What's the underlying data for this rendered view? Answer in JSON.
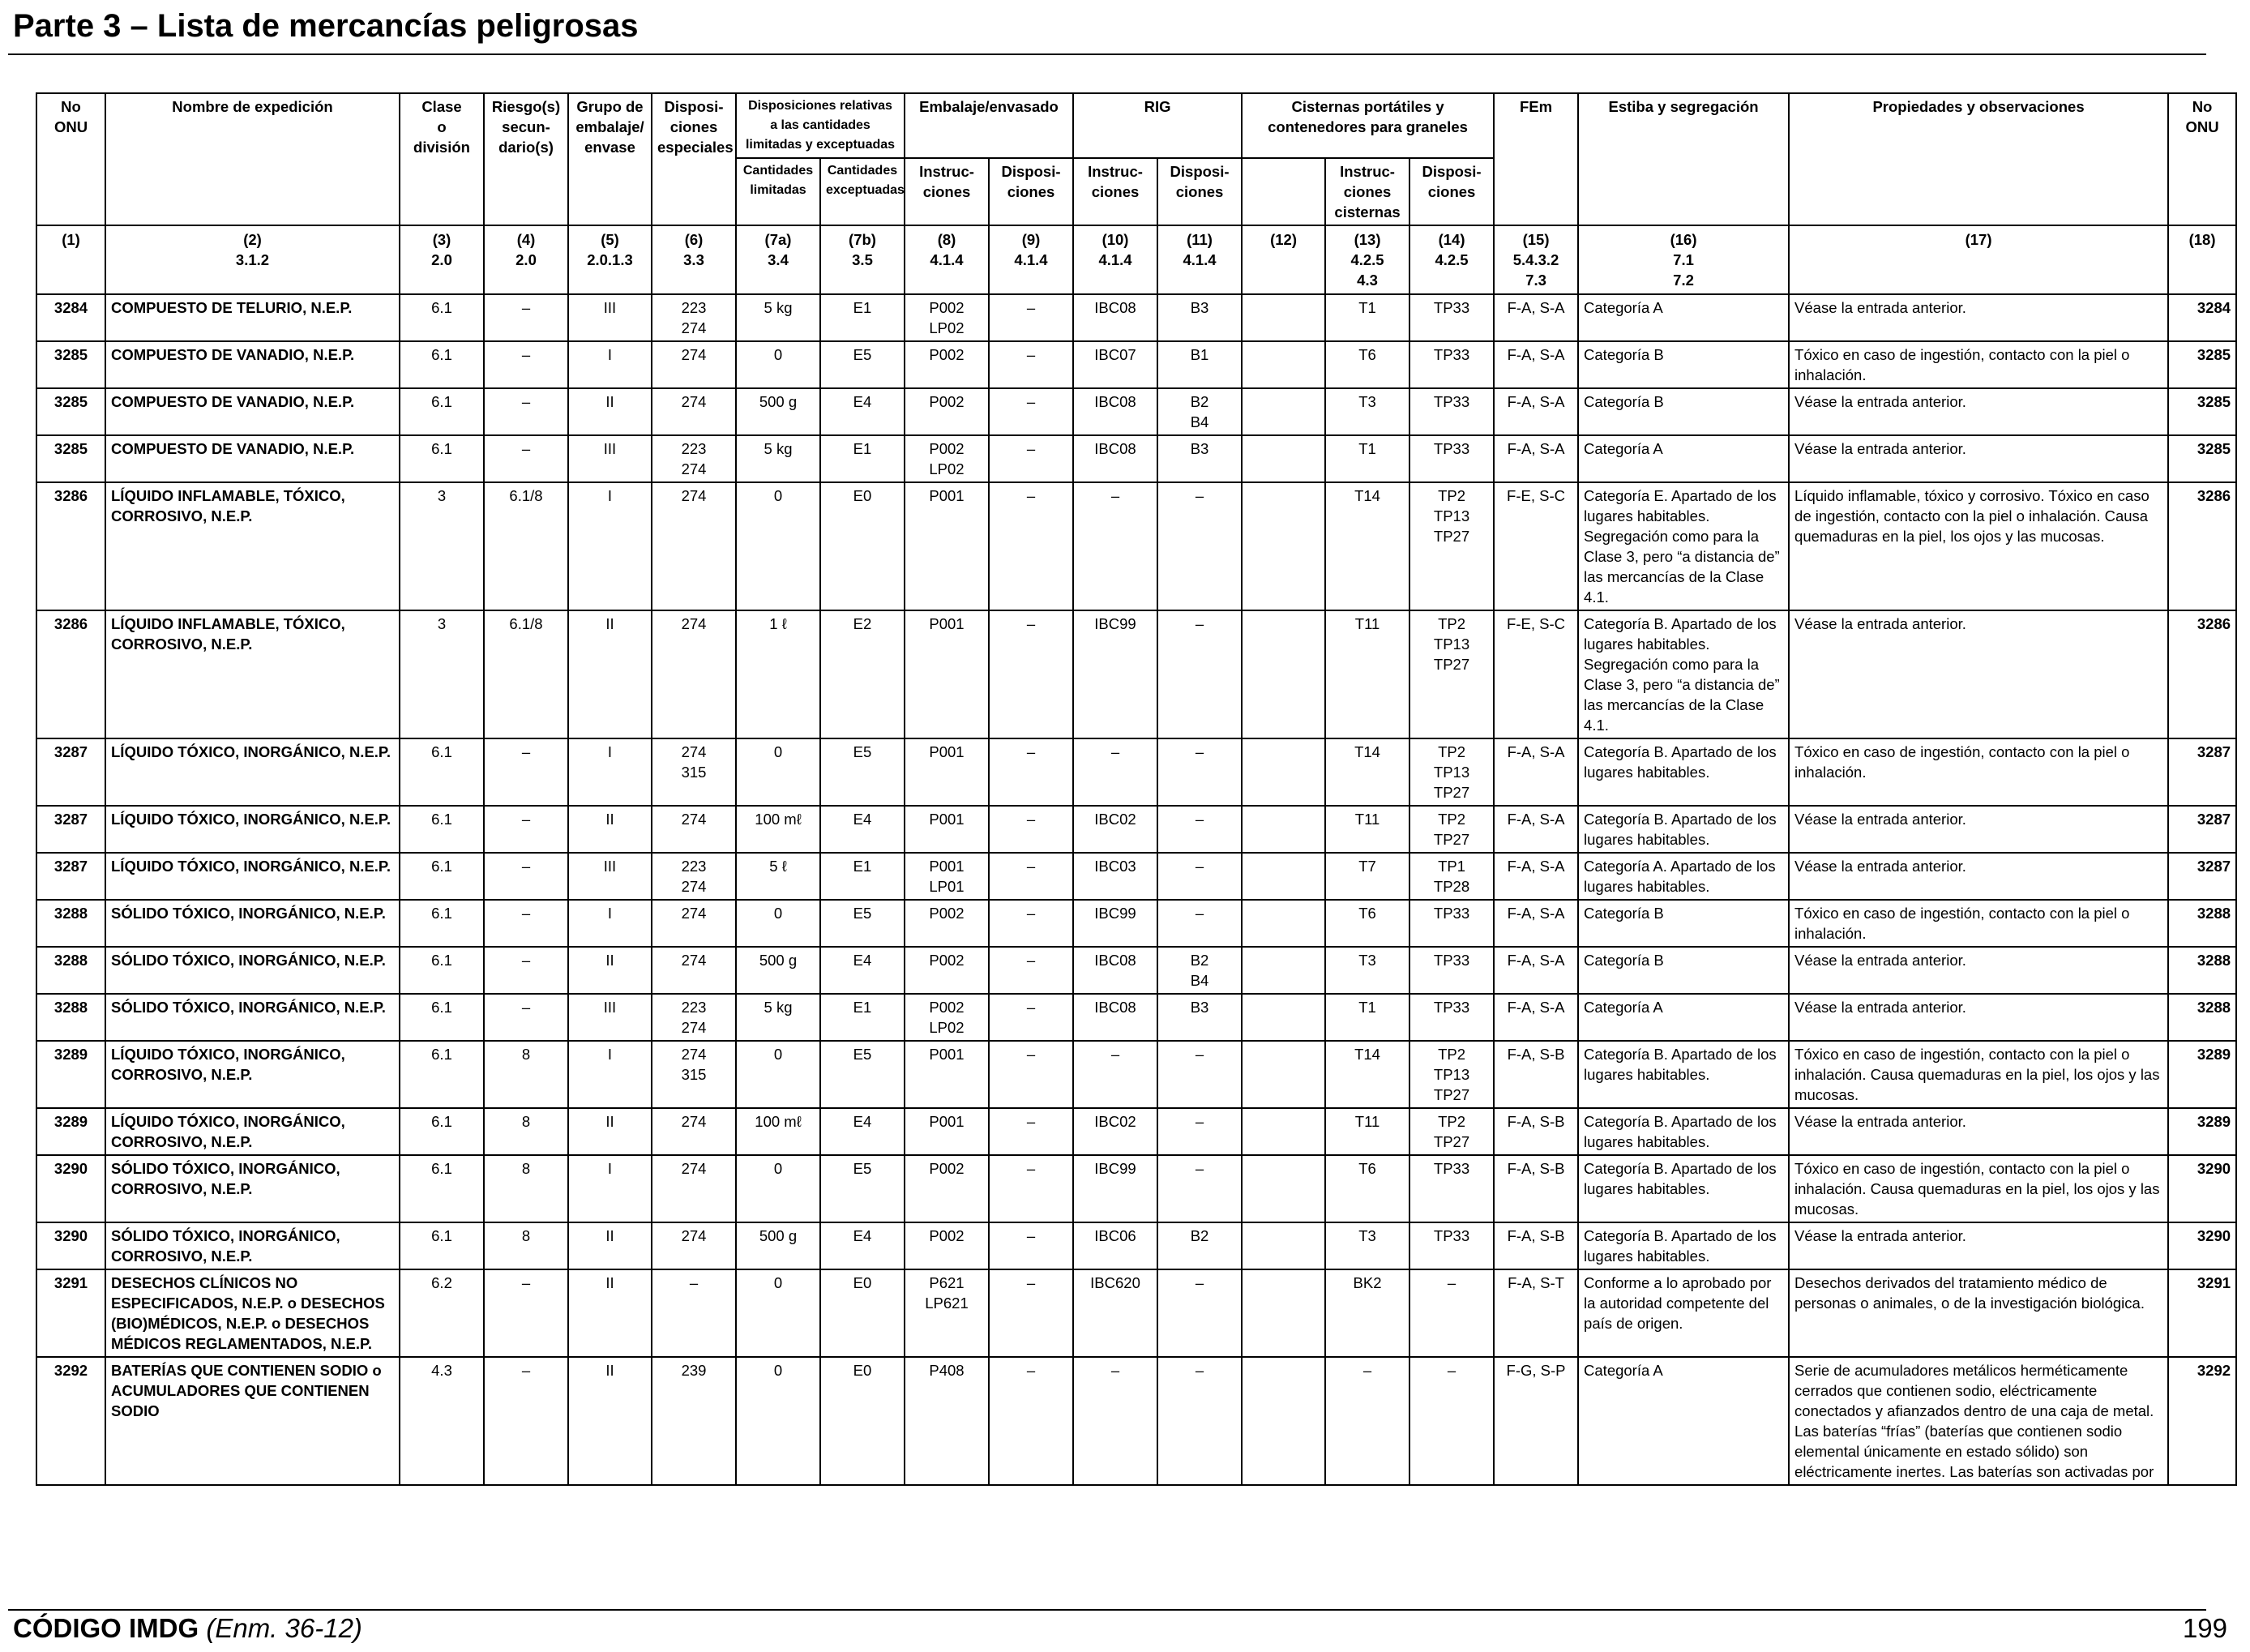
{
  "page": {
    "title": "Parte 3 – Lista de mercancías peligrosas",
    "footer_code": "CÓDIGO IMDG",
    "footer_edition": "(Enm. 36-12)",
    "page_number": "199"
  },
  "table": {
    "headers": {
      "un_no": "No\nONU",
      "name": "Nombre de expedición",
      "class": "Clase\no\ndivisión",
      "subrisk": "Riesgo(s)\nsecun-\ndario(s)",
      "pg": "Grupo de\nembalaje/\nenvase",
      "sp": "Disposi-\nciones\nespeciales",
      "limited_group": "Disposiciones relativas\na las cantidades\nlimitadas y exceptuadas",
      "limited": "Cantidades\nlimitadas",
      "excepted": "Cantidades\nexceptuadas",
      "packing_group": "Embalaje/envasado",
      "packing_instr": "Instruc-\nciones",
      "packing_prov": "Disposi-\nciones",
      "ibc_group": "RIG",
      "ibc_instr": "Instruc-\nciones",
      "ibc_prov": "Disposi-\nciones",
      "tank_group": "Cisternas portátiles y\ncontenedores para graneles",
      "tank_instr": "Instruc-\nciones\ncisternas",
      "tank_prov": "Disposi-\nciones",
      "ems": "FEm",
      "stowage": "Estiba y segregación",
      "properties": "Propiedades y observaciones",
      "un_no_right": "No\nONU"
    },
    "column_numbers": [
      "(1)",
      "(2)\n3.1.2",
      "(3)\n2.0",
      "(4)\n2.0",
      "(5)\n2.0.1.3",
      "(6)\n3.3",
      "(7a)\n3.4",
      "(7b)\n3.5",
      "(8)\n4.1.4",
      "(9)\n4.1.4",
      "(10)\n4.1.4",
      "(11)\n4.1.4",
      "(12)",
      "(13)\n4.2.5\n4.3",
      "(14)\n4.2.5",
      "(15)\n5.4.3.2\n7.3",
      "(16)\n7.1\n7.2",
      "(17)",
      "(18)"
    ],
    "rows": [
      {
        "un": "3284",
        "name": "COMPUESTO DE TELURIO, N.E.P.",
        "cls": "6.1",
        "sub": "–",
        "pg": "III",
        "sp": "223\n274",
        "lq": "5 kg",
        "eq": "E1",
        "pi": "P002\nLP02",
        "pp": "–",
        "ibc": "IBC08",
        "ibcp": "B3",
        "c12": "",
        "tank": "T1",
        "tankp": "TP33",
        "ems": "F-A, S-A",
        "stow": "Categoría A",
        "props": "Véase la entrada anterior.",
        "un2": "3284"
      },
      {
        "un": "3285",
        "name": "COMPUESTO DE VANADIO, N.E.P.",
        "cls": "6.1",
        "sub": "–",
        "pg": "I",
        "sp": "274",
        "lq": "0",
        "eq": "E5",
        "pi": "P002",
        "pp": "–",
        "ibc": "IBC07",
        "ibcp": "B1",
        "c12": "",
        "tank": "T6",
        "tankp": "TP33",
        "ems": "F-A, S-A",
        "stow": "Categoría B",
        "props": "Tóxico en caso de ingestión, contacto con la piel o inhalación.",
        "un2": "3285"
      },
      {
        "un": "3285",
        "name": "COMPUESTO DE VANADIO, N.E.P.",
        "cls": "6.1",
        "sub": "–",
        "pg": "II",
        "sp": "274",
        "lq": "500 g",
        "eq": "E4",
        "pi": "P002",
        "pp": "–",
        "ibc": "IBC08",
        "ibcp": "B2\nB4",
        "c12": "",
        "tank": "T3",
        "tankp": "TP33",
        "ems": "F-A, S-A",
        "stow": "Categoría B",
        "props": "Véase la entrada anterior.",
        "un2": "3285"
      },
      {
        "un": "3285",
        "name": "COMPUESTO DE VANADIO, N.E.P.",
        "cls": "6.1",
        "sub": "–",
        "pg": "III",
        "sp": "223\n274",
        "lq": "5 kg",
        "eq": "E1",
        "pi": "P002\nLP02",
        "pp": "–",
        "ibc": "IBC08",
        "ibcp": "B3",
        "c12": "",
        "tank": "T1",
        "tankp": "TP33",
        "ems": "F-A, S-A",
        "stow": "Categoría A",
        "props": "Véase la entrada anterior.",
        "un2": "3285"
      },
      {
        "un": "3286",
        "name": "LÍQUIDO INFLAMABLE, TÓXICO, CORROSIVO, N.E.P.",
        "cls": "3",
        "sub": "6.1/8",
        "pg": "I",
        "sp": "274",
        "lq": "0",
        "eq": "E0",
        "pi": "P001",
        "pp": "–",
        "ibc": "–",
        "ibcp": "–",
        "c12": "",
        "tank": "T14",
        "tankp": "TP2\nTP13\nTP27",
        "ems": "F-E, S-C",
        "stow": "Categoría E. Apartado de los lugares habitables. Segregación como para la Clase 3, pero “a distancia de” las mercancías de la Clase 4.1.",
        "props": "Líquido inflamable, tóxico y corrosivo. Tóxico en caso de ingestión, contacto con la piel o inhalación. Causa quemaduras en la piel, los ojos y las mucosas.",
        "un2": "3286"
      },
      {
        "un": "3286",
        "name": "LÍQUIDO INFLAMABLE, TÓXICO, CORROSIVO, N.E.P.",
        "cls": "3",
        "sub": "6.1/8",
        "pg": "II",
        "sp": "274",
        "lq": "1 ℓ",
        "eq": "E2",
        "pi": "P001",
        "pp": "–",
        "ibc": "IBC99",
        "ibcp": "–",
        "c12": "",
        "tank": "T11",
        "tankp": "TP2\nTP13\nTP27",
        "ems": "F-E, S-C",
        "stow": "Categoría B. Apartado de los lugares habitables. Segregación como para la Clase 3, pero “a distancia de” las mercancías de la Clase 4.1.",
        "props": "Véase la entrada anterior.",
        "un2": "3286"
      },
      {
        "un": "3287",
        "name": "LÍQUIDO TÓXICO, INORGÁNICO, N.E.P.",
        "cls": "6.1",
        "sub": "–",
        "pg": "I",
        "sp": "274\n315",
        "lq": "0",
        "eq": "E5",
        "pi": "P001",
        "pp": "–",
        "ibc": "–",
        "ibcp": "–",
        "c12": "",
        "tank": "T14",
        "tankp": "TP2\nTP13\nTP27",
        "ems": "F-A, S-A",
        "stow": "Categoría B. Apartado de los lugares habitables.",
        "props": "Tóxico en caso de ingestión, contacto con la piel o inhalación.",
        "un2": "3287"
      },
      {
        "un": "3287",
        "name": "LÍQUIDO TÓXICO, INORGÁNICO, N.E.P.",
        "cls": "6.1",
        "sub": "–",
        "pg": "II",
        "sp": "274",
        "lq": "100 mℓ",
        "eq": "E4",
        "pi": "P001",
        "pp": "–",
        "ibc": "IBC02",
        "ibcp": "–",
        "c12": "",
        "tank": "T11",
        "tankp": "TP2\nTP27",
        "ems": "F-A, S-A",
        "stow": "Categoría B. Apartado de los lugares habitables.",
        "props": "Véase la entrada anterior.",
        "un2": "3287"
      },
      {
        "un": "3287",
        "name": "LÍQUIDO TÓXICO, INORGÁNICO, N.E.P.",
        "cls": "6.1",
        "sub": "–",
        "pg": "III",
        "sp": "223\n274",
        "lq": "5 ℓ",
        "eq": "E1",
        "pi": "P001\nLP01",
        "pp": "–",
        "ibc": "IBC03",
        "ibcp": "–",
        "c12": "",
        "tank": "T7",
        "tankp": "TP1\nTP28",
        "ems": "F-A, S-A",
        "stow": "Categoría A. Apartado de los lugares habitables.",
        "props": "Véase la entrada anterior.",
        "un2": "3287"
      },
      {
        "un": "3288",
        "name": "SÓLIDO TÓXICO, INORGÁNICO, N.E.P.",
        "cls": "6.1",
        "sub": "–",
        "pg": "I",
        "sp": "274",
        "lq": "0",
        "eq": "E5",
        "pi": "P002",
        "pp": "–",
        "ibc": "IBC99",
        "ibcp": "–",
        "c12": "",
        "tank": "T6",
        "tankp": "TP33",
        "ems": "F-A, S-A",
        "stow": "Categoría B",
        "props": "Tóxico en caso de ingestión, contacto con la piel o inhalación.",
        "un2": "3288"
      },
      {
        "un": "3288",
        "name": "SÓLIDO TÓXICO, INORGÁNICO, N.E.P.",
        "cls": "6.1",
        "sub": "–",
        "pg": "II",
        "sp": "274",
        "lq": "500 g",
        "eq": "E4",
        "pi": "P002",
        "pp": "–",
        "ibc": "IBC08",
        "ibcp": "B2\nB4",
        "c12": "",
        "tank": "T3",
        "tankp": "TP33",
        "ems": "F-A, S-A",
        "stow": "Categoría B",
        "props": "Véase la entrada anterior.",
        "un2": "3288"
      },
      {
        "un": "3288",
        "name": "SÓLIDO TÓXICO, INORGÁNICO, N.E.P.",
        "cls": "6.1",
        "sub": "–",
        "pg": "III",
        "sp": "223\n274",
        "lq": "5 kg",
        "eq": "E1",
        "pi": "P002\nLP02",
        "pp": "–",
        "ibc": "IBC08",
        "ibcp": "B3",
        "c12": "",
        "tank": "T1",
        "tankp": "TP33",
        "ems": "F-A, S-A",
        "stow": "Categoría A",
        "props": "Véase la entrada anterior.",
        "un2": "3288"
      },
      {
        "un": "3289",
        "name": "LÍQUIDO TÓXICO, INORGÁNICO, CORROSIVO, N.E.P.",
        "cls": "6.1",
        "sub": "8",
        "pg": "I",
        "sp": "274\n315",
        "lq": "0",
        "eq": "E5",
        "pi": "P001",
        "pp": "–",
        "ibc": "–",
        "ibcp": "–",
        "c12": "",
        "tank": "T14",
        "tankp": "TP2\nTP13\nTP27",
        "ems": "F-A, S-B",
        "stow": "Categoría B. Apartado de los lugares habitables.",
        "props": "Tóxico en caso de ingestión, contacto con la piel o inhalación. Causa quemaduras en la piel, los ojos y las mucosas.",
        "un2": "3289"
      },
      {
        "un": "3289",
        "name": "LÍQUIDO TÓXICO, INORGÁNICO, CORROSIVO, N.E.P.",
        "cls": "6.1",
        "sub": "8",
        "pg": "II",
        "sp": "274",
        "lq": "100 mℓ",
        "eq": "E4",
        "pi": "P001",
        "pp": "–",
        "ibc": "IBC02",
        "ibcp": "–",
        "c12": "",
        "tank": "T11",
        "tankp": "TP2\nTP27",
        "ems": "F-A, S-B",
        "stow": "Categoría B. Apartado de los lugares habitables.",
        "props": "Véase la entrada anterior.",
        "un2": "3289"
      },
      {
        "un": "3290",
        "name": "SÓLIDO TÓXICO, INORGÁNICO, CORROSIVO, N.E.P.",
        "cls": "6.1",
        "sub": "8",
        "pg": "I",
        "sp": "274",
        "lq": "0",
        "eq": "E5",
        "pi": "P002",
        "pp": "–",
        "ibc": "IBC99",
        "ibcp": "–",
        "c12": "",
        "tank": "T6",
        "tankp": "TP33",
        "ems": "F-A, S-B",
        "stow": "Categoría B. Apartado de los lugares habitables.",
        "props": "Tóxico en caso de ingestión, contacto con la piel o inhalación. Causa quemaduras en la piel, los ojos y las mucosas.",
        "un2": "3290"
      },
      {
        "un": "3290",
        "name": "SÓLIDO TÓXICO, INORGÁNICO, CORROSIVO, N.E.P.",
        "cls": "6.1",
        "sub": "8",
        "pg": "II",
        "sp": "274",
        "lq": "500 g",
        "eq": "E4",
        "pi": "P002",
        "pp": "–",
        "ibc": "IBC06",
        "ibcp": "B2",
        "c12": "",
        "tank": "T3",
        "tankp": "TP33",
        "ems": "F-A, S-B",
        "stow": "Categoría B. Apartado de los lugares habitables.",
        "props": "Véase la entrada anterior.",
        "un2": "3290"
      },
      {
        "un": "3291",
        "name": "DESECHOS CLÍNICOS NO ESPECIFICADOS, N.E.P. o DESECHOS (BIO)MÉDICOS, N.E.P. o DESECHOS MÉDICOS REGLAMENTADOS, N.E.P.",
        "cls": "6.2",
        "sub": "–",
        "pg": "II",
        "sp": "–",
        "lq": "0",
        "eq": "E0",
        "pi": "P621\nLP621",
        "pp": "–",
        "ibc": "IBC620",
        "ibcp": "–",
        "c12": "",
        "tank": "BK2",
        "tankp": "–",
        "ems": "F-A, S-T",
        "stow": "Conforme a lo aprobado por la autoridad competente del país de origen.",
        "props": "Desechos derivados del tratamiento médico de personas o animales, o de la investigación biológica.",
        "un2": "3291"
      },
      {
        "un": "3292",
        "name": "BATERÍAS QUE CONTIENEN SODIO o ACUMULADORES QUE CONTIENEN SODIO",
        "cls": "4.3",
        "sub": "–",
        "pg": "II",
        "sp": "239",
        "lq": "0",
        "eq": "E0",
        "pi": "P408",
        "pp": "–",
        "ibc": "–",
        "ibcp": "–",
        "c12": "",
        "tank": "–",
        "tankp": "–",
        "ems": "F-G, S-P",
        "stow": "Categoría A",
        "props": "Serie de acumuladores metálicos herméticamente cerrados que contienen sodio, eléctricamente conectados y afianzados dentro de una caja de metal. Las baterías “frías” (baterías que contienen sodio elemental únicamente en estado sólido) son eléctricamente inertes. Las baterías son activadas por",
        "un2": "3292"
      }
    ]
  }
}
